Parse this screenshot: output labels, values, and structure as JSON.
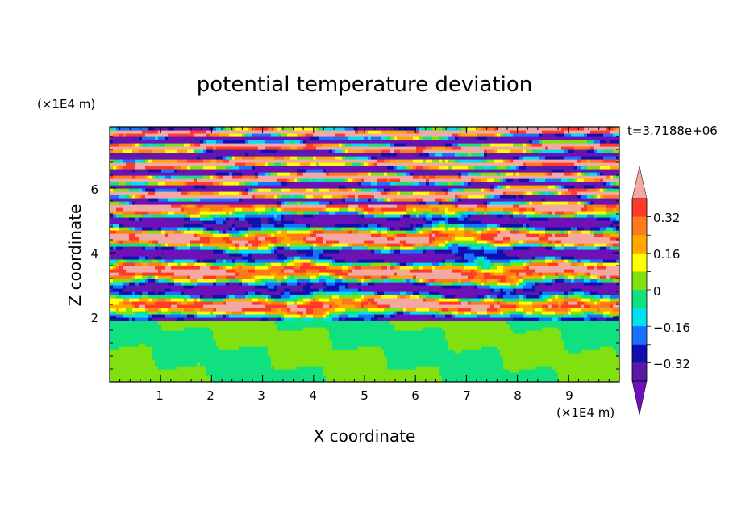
{
  "chart_data": {
    "type": "heatmap",
    "title": "potential temperature deviation",
    "time_label": "t=3.7188e+06",
    "xlabel": "X coordinate",
    "ylabel": "Z coordinate",
    "x_unit": "(×1E4 m)",
    "z_unit": "(×1E4 m)",
    "xlim": [
      0,
      10
    ],
    "zlim": [
      0,
      7.9
    ],
    "x_ticks": [
      "1",
      "2",
      "3",
      "4",
      "5",
      "6",
      "7",
      "8",
      "9"
    ],
    "z_ticks": [
      "2",
      "4",
      "6"
    ],
    "colorbar": {
      "labels": [
        "0.32",
        "0.16",
        "0",
        "−0.16",
        "−0.32"
      ],
      "levels": [
        0.4,
        0.32,
        0.24,
        0.16,
        0.08,
        0,
        -0.08,
        -0.16,
        -0.24,
        -0.32,
        -0.4
      ],
      "colors": {
        "above": "#f4a8a4",
        "bands": [
          "#ff3a2a",
          "#ff7a1a",
          "#ffa800",
          "#ffff00",
          "#80e010",
          "#10e080",
          "#00e0f0",
          "#1a70ff",
          "#1010b0",
          "#5a1aa8"
        ],
        "below": "#7010b8"
      }
    },
    "regions": [
      {
        "z_range": [
          0,
          1.95
        ],
        "description_values": [
          -0.04,
          0.04
        ],
        "dominant": 0
      },
      {
        "z_range": [
          1.95,
          5.5
        ],
        "description_values": [
          -0.4,
          0.4
        ],
        "dominant": null
      },
      {
        "z_range": [
          5.5,
          7.9
        ],
        "description_values": [
          -0.4,
          0.4
        ],
        "dominant": null
      }
    ]
  }
}
